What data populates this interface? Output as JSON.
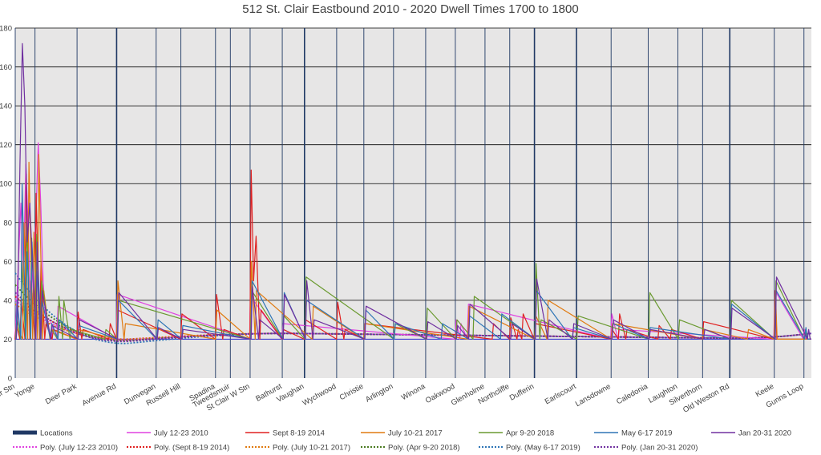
{
  "chart_data": {
    "type": "line",
    "title": "512 St. Clair Eastbound 2010 - 2020 Dwell Times 1700 to 1800",
    "xlabel": "",
    "ylabel": "",
    "ylim": [
      0,
      180
    ],
    "yticks": [
      0,
      20,
      40,
      60,
      80,
      100,
      120,
      140,
      160,
      180
    ],
    "grid": true,
    "legend_position": "bottom",
    "location_marker_series": "Locations",
    "stops": [
      {
        "name": "St Clair Stn",
        "x": 0,
        "major": false
      },
      {
        "name": "Yonge",
        "x": 8,
        "major": false
      },
      {
        "name": "Deer Park",
        "x": 25,
        "major": false
      },
      {
        "name": "Avenue Rd",
        "x": 41,
        "major": true
      },
      {
        "name": "Dunvegan",
        "x": 57,
        "major": false
      },
      {
        "name": "Russell Hill",
        "x": 67,
        "major": false
      },
      {
        "name": "Spadina",
        "x": 81,
        "major": false
      },
      {
        "name": "Tweedsmuir",
        "x": 87,
        "major": false
      },
      {
        "name": "St Clair W Stn",
        "x": 95,
        "major": false
      },
      {
        "name": "Bathurst",
        "x": 108,
        "major": false
      },
      {
        "name": "Vaughan",
        "x": 117,
        "major": true
      },
      {
        "name": "Wychwood",
        "x": 130,
        "major": false
      },
      {
        "name": "Christie",
        "x": 141,
        "major": false
      },
      {
        "name": "Arlington",
        "x": 153,
        "major": false
      },
      {
        "name": "Winona",
        "x": 166,
        "major": false
      },
      {
        "name": "Oakwood",
        "x": 178,
        "major": false
      },
      {
        "name": "Glenholme",
        "x": 190,
        "major": false
      },
      {
        "name": "Northcliffe",
        "x": 200,
        "major": false
      },
      {
        "name": "Dufferin",
        "x": 210,
        "major": true
      },
      {
        "name": "Earlscourt",
        "x": 227,
        "major": true
      },
      {
        "name": "Lansdowne",
        "x": 241,
        "major": false
      },
      {
        "name": "Caledonia",
        "x": 256,
        "major": false
      },
      {
        "name": "Laughton",
        "x": 268,
        "major": false
      },
      {
        "name": "Silverthorn",
        "x": 278,
        "major": false
      },
      {
        "name": "Old Weston Rd",
        "x": 289,
        "major": true
      },
      {
        "name": "Keele",
        "x": 307,
        "major": false
      },
      {
        "name": "Gunns Loop",
        "x": 319,
        "major": false
      }
    ],
    "x_range": [
      0,
      322
    ],
    "base_y": 20,
    "series": [
      {
        "name": "July 12-23 2010",
        "color": "#e040e0",
        "peaks": [
          [
            0,
            30
          ],
          [
            1,
            60
          ],
          [
            2,
            90
          ],
          [
            3,
            55
          ],
          [
            4,
            110
          ],
          [
            5,
            75
          ],
          [
            6,
            35
          ],
          [
            7,
            60
          ],
          [
            8,
            80
          ],
          [
            9,
            121
          ],
          [
            10,
            90
          ],
          [
            11,
            50
          ],
          [
            12,
            30
          ],
          [
            13,
            25
          ],
          [
            15,
            27
          ],
          [
            17,
            37
          ],
          [
            41,
            43
          ],
          [
            95,
            55
          ],
          [
            96,
            40
          ],
          [
            108,
            28
          ],
          [
            178,
            30
          ],
          [
            180,
            28
          ],
          [
            183,
            38
          ],
          [
            241,
            33
          ],
          [
            244,
            25
          ],
          [
            307,
            45
          ],
          [
            319,
            25
          ]
        ]
      },
      {
        "name": "Sept 8-19 2014",
        "color": "#e02020",
        "peaks": [
          [
            0,
            28
          ],
          [
            2,
            40
          ],
          [
            4,
            105
          ],
          [
            6,
            50
          ],
          [
            8,
            95
          ],
          [
            10,
            60
          ],
          [
            12,
            28
          ],
          [
            15,
            25
          ],
          [
            25,
            34
          ],
          [
            27,
            25
          ],
          [
            38,
            28
          ],
          [
            41,
            35
          ],
          [
            67,
            33
          ],
          [
            81,
            43
          ],
          [
            84,
            25
          ],
          [
            95,
            107
          ],
          [
            96,
            50
          ],
          [
            97,
            73
          ],
          [
            99,
            35
          ],
          [
            108,
            25
          ],
          [
            117,
            30
          ],
          [
            130,
            39
          ],
          [
            133,
            25
          ],
          [
            141,
            28
          ],
          [
            193,
            28
          ],
          [
            200,
            31
          ],
          [
            203,
            25
          ],
          [
            205,
            33
          ],
          [
            210,
            28
          ],
          [
            241,
            25
          ],
          [
            244,
            33
          ],
          [
            247,
            25
          ],
          [
            260,
            27
          ],
          [
            265,
            25
          ],
          [
            278,
            29
          ],
          [
            307,
            45
          ]
        ]
      },
      {
        "name": "July 10-21 2017",
        "color": "#e07a10",
        "peaks": [
          [
            0,
            26
          ],
          [
            3,
            80
          ],
          [
            5,
            111
          ],
          [
            7,
            75
          ],
          [
            9,
            115
          ],
          [
            11,
            45
          ],
          [
            14,
            25
          ],
          [
            25,
            25
          ],
          [
            41,
            50
          ],
          [
            44,
            28
          ],
          [
            81,
            35
          ],
          [
            95,
            60
          ],
          [
            97,
            45
          ],
          [
            120,
            37
          ],
          [
            141,
            28
          ],
          [
            183,
            37
          ],
          [
            210,
            32
          ],
          [
            215,
            40
          ],
          [
            241,
            28
          ],
          [
            278,
            25
          ],
          [
            296,
            25
          ],
          [
            307,
            42
          ]
        ]
      },
      {
        "name": "Apr 9-20 2018",
        "color": "#6a9a30",
        "peaks": [
          [
            0,
            32
          ],
          [
            2,
            60
          ],
          [
            4,
            80
          ],
          [
            6,
            72
          ],
          [
            8,
            74
          ],
          [
            10,
            50
          ],
          [
            14,
            25
          ],
          [
            17,
            42
          ],
          [
            19,
            40
          ],
          [
            22,
            25
          ],
          [
            36,
            25
          ],
          [
            41,
            40
          ],
          [
            95,
            45
          ],
          [
            108,
            32
          ],
          [
            117,
            52
          ],
          [
            153,
            28
          ],
          [
            166,
            36
          ],
          [
            178,
            30
          ],
          [
            185,
            42
          ],
          [
            210,
            59
          ],
          [
            212,
            30
          ],
          [
            227,
            32
          ],
          [
            256,
            44
          ],
          [
            268,
            30
          ],
          [
            289,
            40
          ],
          [
            307,
            50
          ],
          [
            319,
            25
          ]
        ]
      },
      {
        "name": "May 6-17 2019",
        "color": "#2e75b6",
        "peaks": [
          [
            0,
            40
          ],
          [
            2,
            100
          ],
          [
            4,
            65
          ],
          [
            6,
            70
          ],
          [
            8,
            55
          ],
          [
            10,
            40
          ],
          [
            14,
            28
          ],
          [
            17,
            30
          ],
          [
            25,
            27
          ],
          [
            41,
            40
          ],
          [
            57,
            30
          ],
          [
            67,
            27
          ],
          [
            95,
            50
          ],
          [
            108,
            44
          ],
          [
            117,
            40
          ],
          [
            141,
            35
          ],
          [
            153,
            28
          ],
          [
            172,
            28
          ],
          [
            183,
            32
          ],
          [
            196,
            33
          ],
          [
            210,
            45
          ],
          [
            225,
            26
          ],
          [
            241,
            28
          ],
          [
            256,
            26
          ],
          [
            289,
            38
          ],
          [
            307,
            45
          ],
          [
            319,
            26
          ]
        ]
      },
      {
        "name": "Jan 20-31 2020",
        "color": "#7030a0",
        "peaks": [
          [
            0,
            30
          ],
          [
            1,
            110
          ],
          [
            2,
            172
          ],
          [
            3,
            140
          ],
          [
            4,
            70
          ],
          [
            5,
            90
          ],
          [
            6,
            60
          ],
          [
            8,
            70
          ],
          [
            10,
            45
          ],
          [
            14,
            27
          ],
          [
            25,
            30
          ],
          [
            41,
            44
          ],
          [
            57,
            26
          ],
          [
            67,
            25
          ],
          [
            95,
            47
          ],
          [
            98,
            30
          ],
          [
            108,
            43
          ],
          [
            117,
            50
          ],
          [
            120,
            30
          ],
          [
            141,
            37
          ],
          [
            166,
            29
          ],
          [
            178,
            27
          ],
          [
            183,
            38
          ],
          [
            200,
            28
          ],
          [
            210,
            51
          ],
          [
            215,
            30
          ],
          [
            225,
            28
          ],
          [
            241,
            30
          ],
          [
            256,
            25
          ],
          [
            278,
            25
          ],
          [
            289,
            36
          ],
          [
            307,
            52
          ],
          [
            320,
            25
          ]
        ]
      }
    ],
    "trendlines": [
      {
        "name": "Poly. (July 12-23 2010)",
        "color": "#e040e0",
        "start": 40,
        "dip": 19.5
      },
      {
        "name": "Poly. (Sept 8-19 2014)",
        "color": "#e02020",
        "start": 42,
        "dip": 20
      },
      {
        "name": "Poly. (July 10-21 2017)",
        "color": "#e07a10",
        "start": 38,
        "dip": 19.8
      },
      {
        "name": "Poly. (Apr 9-20 2018)",
        "color": "#4a7a20",
        "start": 48,
        "dip": 19.2
      },
      {
        "name": "Poly. (May 6-17 2019)",
        "color": "#2e75b6",
        "start": 54,
        "dip": 17.8
      },
      {
        "name": "Poly. (Jan 20-31 2020)",
        "color": "#7030a0",
        "start": 44,
        "dip": 18.8
      }
    ],
    "legend": {
      "row1": [
        {
          "label": "Locations",
          "color": "#1f3864",
          "style": "solid-thick"
        },
        {
          "label": "July 12-23 2010",
          "color": "#e040e0",
          "style": "solid"
        },
        {
          "label": "Sept 8-19 2014",
          "color": "#e02020",
          "style": "solid"
        },
        {
          "label": "July 10-21 2017",
          "color": "#e07a10",
          "style": "solid"
        },
        {
          "label": "Apr 9-20 2018",
          "color": "#6a9a30",
          "style": "solid"
        },
        {
          "label": "May 6-17 2019",
          "color": "#2e75b6",
          "style": "solid"
        },
        {
          "label": "Jan 20-31 2020",
          "color": "#7030a0",
          "style": "solid"
        }
      ],
      "row2": [
        {
          "label": "Poly. (July 12-23 2010)",
          "color": "#e040e0",
          "style": "dotted"
        },
        {
          "label": "Poly. (Sept 8-19 2014)",
          "color": "#e02020",
          "style": "dotted"
        },
        {
          "label": "Poly. (July 10-21 2017)",
          "color": "#e07a10",
          "style": "dotted"
        },
        {
          "label": "Poly. (Apr 9-20 2018)",
          "color": "#4a7a20",
          "style": "dotted"
        },
        {
          "label": "Poly. (May 6-17 2019)",
          "color": "#2e75b6",
          "style": "dotted"
        },
        {
          "label": "Poly. (Jan 20-31 2020)",
          "color": "#7030a0",
          "style": "dotted"
        }
      ]
    }
  }
}
